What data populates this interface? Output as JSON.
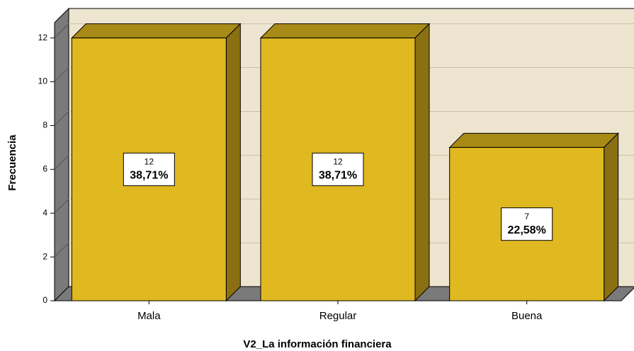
{
  "chart_data": {
    "type": "bar3d",
    "x_label": "V2_La información financiera",
    "y_label": "Frecuencia",
    "categories": [
      "Mala",
      "Regular",
      "Buena"
    ],
    "values": [
      12,
      12,
      7
    ],
    "percent": {
      "values": [
        38.71,
        38.71,
        22.58
      ],
      "value_labels": [
        "38,71%",
        "38,71%",
        "22,58%"
      ]
    },
    "color": "#e0b820",
    "ylim": [
      0,
      12.7
    ],
    "yticks": [
      0,
      2,
      4,
      6,
      8,
      10,
      12
    ],
    "grid": true
  }
}
